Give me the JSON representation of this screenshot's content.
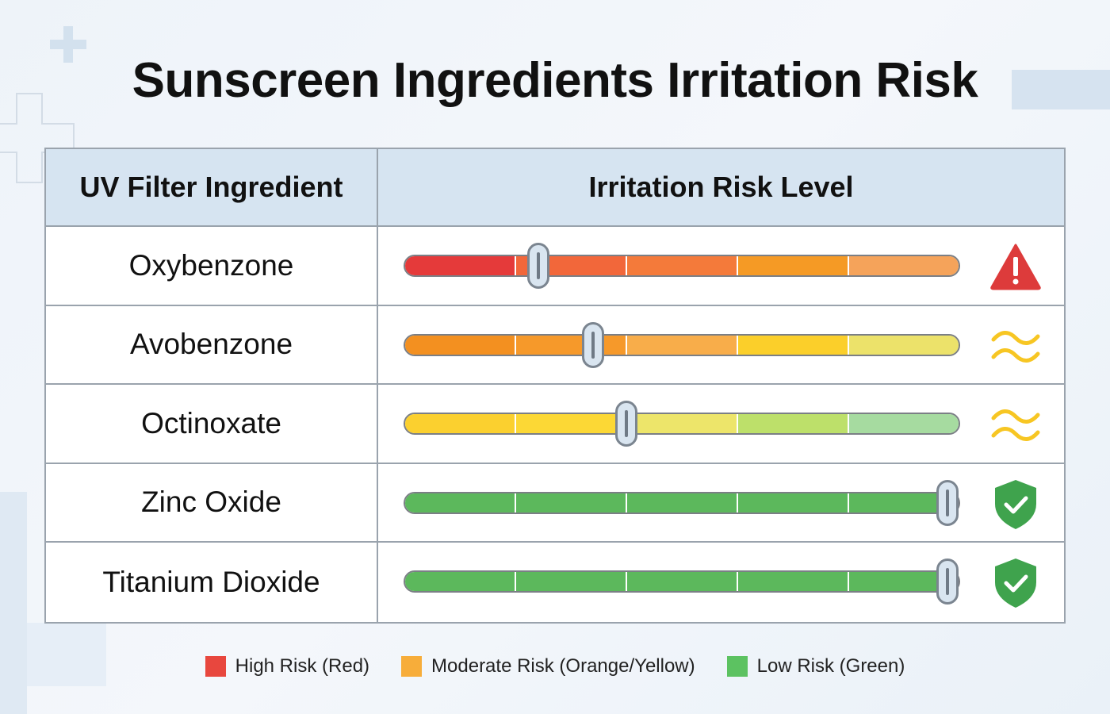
{
  "title": "Sunscreen Ingredients Irritation Risk",
  "table": {
    "headers": [
      "UV Filter Ingredient",
      "Irritation Risk Level"
    ],
    "rows": [
      {
        "ingredient": "Oxybenzone",
        "risk_level": 0.24,
        "icon": "warning-triangle-icon",
        "segments": [
          "#e53a3a",
          "#f2673a",
          "#f47a3a",
          "#f59a25",
          "#f5a35a"
        ],
        "icon_color": "#dd3b3b"
      },
      {
        "ingredient": "Avobenzone",
        "risk_level": 0.34,
        "icon": "wavy-approx-icon",
        "segments": [
          "#f39020",
          "#f6992a",
          "#f8ad4a",
          "#fbcf2a",
          "#ece26a"
        ],
        "icon_color": "#f7c623"
      },
      {
        "ingredient": "Octinoxate",
        "risk_level": 0.4,
        "icon": "wavy-approx-icon",
        "segments": [
          "#fbd02f",
          "#fcd835",
          "#ede56a",
          "#bde06a",
          "#a6dba0"
        ],
        "icon_color": "#f7c623"
      },
      {
        "ingredient": "Zinc Oxide",
        "risk_level": 0.98,
        "icon": "shield-check-icon",
        "segments": [
          "#5cb85c",
          "#5cb85c",
          "#5cb85c",
          "#5cb85c",
          "#5cb85c"
        ],
        "icon_color": "#3fa34d"
      },
      {
        "ingredient": "Titanium Dioxide",
        "risk_level": 0.98,
        "icon": "shield-check-icon",
        "segments": [
          "#5cb85c",
          "#5cb85c",
          "#5cb85c",
          "#5cb85c",
          "#5cb85c"
        ],
        "icon_color": "#3fa34d"
      }
    ]
  },
  "legend": [
    {
      "label": "High Risk (Red)",
      "color": "#e8473e"
    },
    {
      "label": "Moderate Risk (Orange/Yellow)",
      "color": "#f7ad3a"
    },
    {
      "label": "Low Risk (Green)",
      "color": "#5cc261"
    }
  ]
}
